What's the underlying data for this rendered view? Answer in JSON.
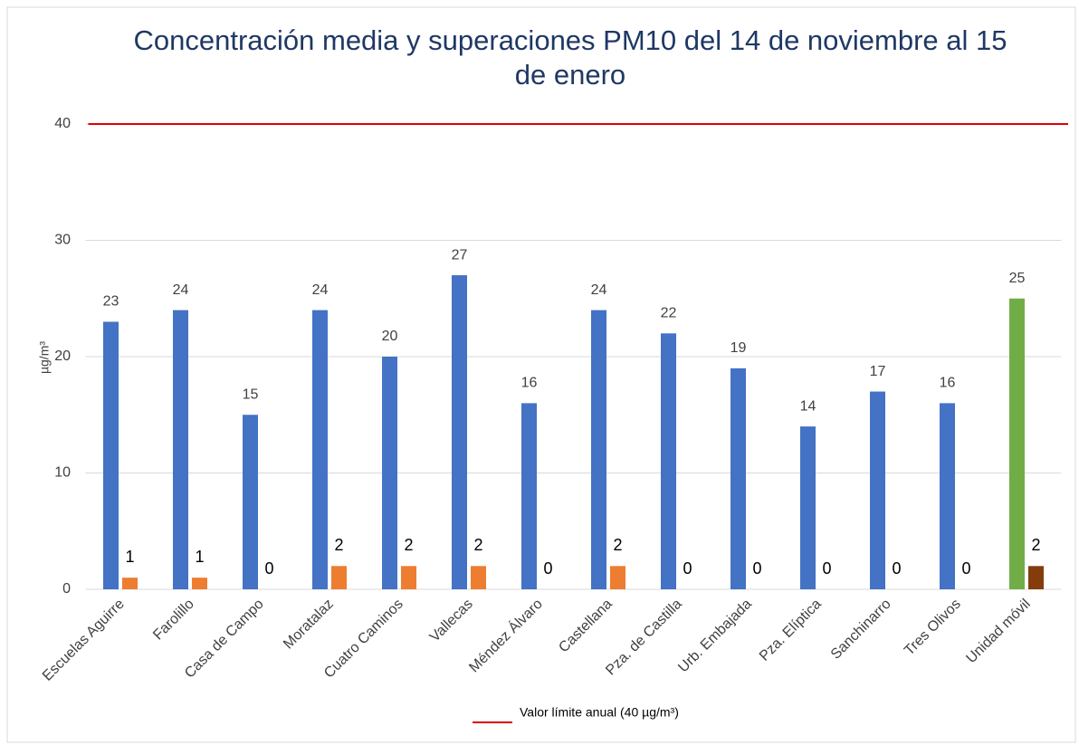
{
  "chart_data": {
    "type": "bar",
    "title": "Concentración media y superaciones PM10 del 14 de noviembre al 15 de enero",
    "y_label": "µg/m³",
    "categories": [
      "Escuelas Aguirre",
      "Farolillo",
      "Casa de Campo",
      "Moratalaz",
      "Cuatro Caminos",
      "Vallecas",
      "Méndez Álvaro",
      "Castellana",
      "Pza. de Castilla",
      "Urb. Embajada",
      "Pza. Elíptica",
      "Sanchinarro",
      "Tres Olivos",
      "Unidad móvil"
    ],
    "series": [
      {
        "values": [
          23,
          24,
          15,
          24,
          20,
          27,
          16,
          24,
          22,
          19,
          14,
          17,
          16,
          25
        ],
        "colors": [
          "#4472c4",
          "#4472c4",
          "#4472c4",
          "#4472c4",
          "#4472c4",
          "#4472c4",
          "#4472c4",
          "#4472c4",
          "#4472c4",
          "#4472c4",
          "#4472c4",
          "#4472c4",
          "#4472c4",
          "#70ad47"
        ]
      },
      {
        "values": [
          1,
          1,
          0,
          2,
          2,
          2,
          0,
          2,
          0,
          0,
          0,
          0,
          0,
          2
        ],
        "colors": [
          "#ed7d31",
          "#ed7d31",
          "#ed7d31",
          "#ed7d31",
          "#ed7d31",
          "#ed7d31",
          "#ed7d31",
          "#ed7d31",
          "#ed7d31",
          "#ed7d31",
          "#ed7d31",
          "#ed7d31",
          "#ed7d31",
          "#843c0c"
        ]
      }
    ],
    "reference_line": {
      "value": 40,
      "name": "Valor límite anual (40 µg/m³)",
      "color": "#e00000"
    },
    "ylim": [
      0,
      40
    ],
    "yticks": [
      0,
      10,
      20,
      30,
      40
    ],
    "grid": true
  }
}
